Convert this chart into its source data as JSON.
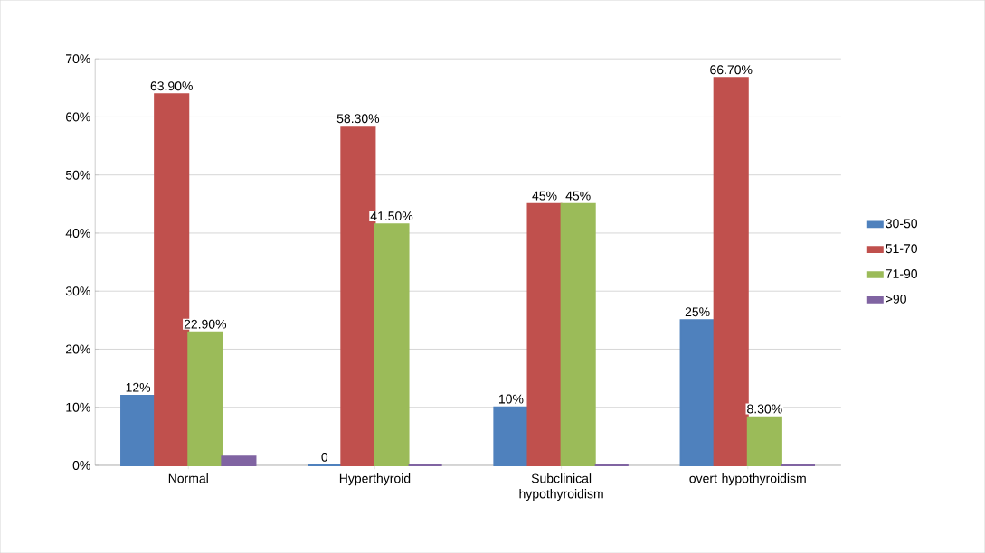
{
  "chart_data": {
    "type": "bar",
    "categories": [
      "Normal",
      "Hyperthyroid",
      "Subclinical hypothyroidism",
      "overt hypothyroidism"
    ],
    "series": [
      {
        "name": "30-50",
        "color": "#4f81bd",
        "values": [
          12,
          0,
          10,
          25
        ],
        "value_labels": [
          "12%",
          "0",
          "10%",
          "25%"
        ]
      },
      {
        "name": "51-70",
        "color": "#c0504d",
        "values": [
          63.9,
          58.3,
          45,
          66.7
        ],
        "value_labels": [
          "63.90%",
          "58.30%",
          "45%",
          "66.70%"
        ]
      },
      {
        "name": "71-90",
        "color": "#9bbb59",
        "values": [
          22.9,
          41.5,
          45,
          8.3
        ],
        "value_labels": [
          "22.90%",
          "41.50%",
          "45%",
          "8.30%"
        ]
      },
      {
        "name": ">90",
        "color": "#8064a2",
        "values": [
          1.5,
          0,
          0,
          0
        ],
        "value_labels": [
          null,
          null,
          null,
          null
        ]
      }
    ],
    "ylim": [
      0,
      70
    ],
    "yticks": [
      {
        "value": 0,
        "label": "0%"
      },
      {
        "value": 10,
        "label": "10%"
      },
      {
        "value": 20,
        "label": "20%"
      },
      {
        "value": 30,
        "label": "30%"
      },
      {
        "value": 40,
        "label": "40%"
      },
      {
        "value": 50,
        "label": "50%"
      },
      {
        "value": 60,
        "label": "60%"
      },
      {
        "value": 70,
        "label": "70%"
      }
    ],
    "grid": "y",
    "legend": "right"
  }
}
